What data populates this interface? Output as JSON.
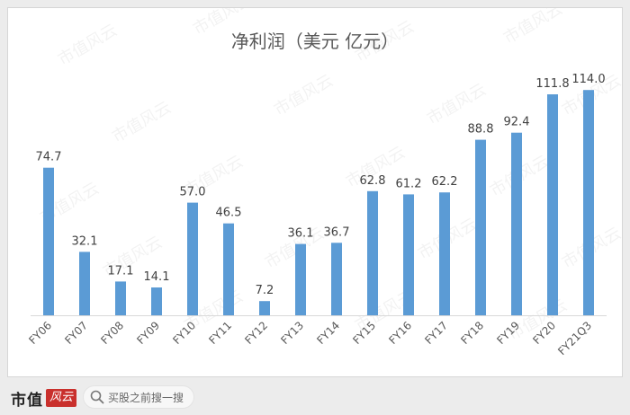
{
  "chart_data": {
    "type": "bar",
    "title": "净利润（美元 亿元）",
    "categories": [
      "FY06",
      "FY07",
      "FY08",
      "FY09",
      "FY10",
      "FY11",
      "FY12",
      "FY13",
      "FY14",
      "FY15",
      "FY16",
      "FY17",
      "FY18",
      "FY19",
      "FY20",
      "FY21Q3"
    ],
    "values": [
      74.7,
      32.1,
      17.1,
      14.1,
      57.0,
      46.5,
      7.2,
      36.1,
      36.7,
      62.8,
      61.2,
      62.2,
      88.8,
      92.4,
      111.8,
      114.0
    ],
    "value_labels": [
      "74.7",
      "32.1",
      "17.1",
      "14.1",
      "57.0",
      "46.5",
      "7.2",
      "36.1",
      "36.7",
      "62.8",
      "61.2",
      "62.2",
      "88.8",
      "92.4",
      "111.8",
      "114.0"
    ],
    "ylim": [
      0,
      120
    ],
    "grid": false,
    "legend": "none",
    "bar_color": "#5b9bd5"
  },
  "watermark": {
    "text": "市值风云"
  },
  "footer": {
    "brand_name": "市值",
    "brand_tag": "风云",
    "search_placeholder": "买股之前搜一搜"
  }
}
